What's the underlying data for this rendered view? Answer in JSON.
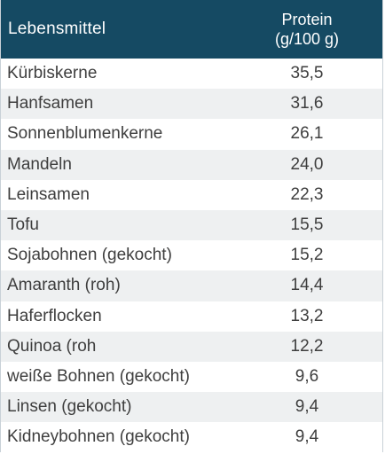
{
  "table": {
    "header": {
      "name": "Lebensmittel",
      "value_line1": "Protein",
      "value_line2": "(g/100 g)"
    },
    "rows": [
      {
        "name": "Kürbiskerne",
        "value": "35,5"
      },
      {
        "name": "Hanfsamen",
        "value": "31,6"
      },
      {
        "name": "Sonnenblumenkerne",
        "value": "26,1"
      },
      {
        "name": "Mandeln",
        "value": "24,0"
      },
      {
        "name": "Leinsamen",
        "value": "22,3"
      },
      {
        "name": "Tofu",
        "value": "15,5"
      },
      {
        "name": "Sojabohnen (gekocht)",
        "value": "15,2"
      },
      {
        "name": "Amaranth (roh)",
        "value": "14,4"
      },
      {
        "name": "Haferflocken",
        "value": "13,2"
      },
      {
        "name": "Quinoa (roh",
        "value": "12,2"
      },
      {
        "name": "weiße Bohnen (gekocht)",
        "value": "9,6"
      },
      {
        "name": "Linsen (gekocht)",
        "value": "9,4"
      },
      {
        "name": "Kidneybohnen (gekocht)",
        "value": "9,4"
      }
    ]
  },
  "colors": {
    "header_bg": "#154a63",
    "header_text": "#ffffff",
    "row_alt_bg": "#eef0f1",
    "text": "#3e3e3e"
  }
}
